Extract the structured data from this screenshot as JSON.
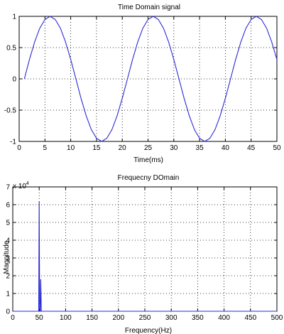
{
  "chart_data": [
    {
      "type": "line",
      "title": "Time Domain signal",
      "xlabel": "Time(ms)",
      "ylabel": "",
      "xlim": [
        0,
        50
      ],
      "ylim": [
        -1,
        1
      ],
      "x_ticks": [
        0,
        5,
        10,
        15,
        20,
        25,
        30,
        35,
        40,
        45,
        50
      ],
      "y_ticks": [
        -1,
        -0.5,
        0,
        0.5,
        1
      ],
      "x_tick_labels": [
        "0",
        "5",
        "10",
        "15",
        "20",
        "25",
        "30",
        "35",
        "40",
        "45",
        "50"
      ],
      "y_tick_labels": [
        "-1",
        "-0.5",
        "0",
        "0.5",
        "1"
      ],
      "grid": true,
      "series": [
        {
          "color": "#2b2bd6",
          "x": [
            1,
            2,
            3,
            4,
            5,
            6,
            7,
            8,
            9,
            10,
            11,
            12,
            13,
            14,
            15,
            16,
            17,
            18,
            19,
            20,
            21,
            22,
            23,
            24,
            25,
            26,
            27,
            28,
            29,
            30,
            31,
            32,
            33,
            34,
            35,
            36,
            37,
            38,
            39,
            40,
            41,
            42,
            43,
            44,
            45,
            46,
            47,
            48,
            49,
            50
          ],
          "y": [
            0,
            0.31,
            0.59,
            0.81,
            0.95,
            1,
            0.95,
            0.81,
            0.59,
            0.31,
            0,
            -0.31,
            -0.59,
            -0.81,
            -0.95,
            -1,
            -0.95,
            -0.81,
            -0.59,
            -0.31,
            0,
            0.31,
            0.59,
            0.81,
            0.95,
            1,
            0.95,
            0.81,
            0.59,
            0.31,
            0,
            -0.31,
            -0.59,
            -0.81,
            -0.95,
            -1,
            -0.95,
            -0.81,
            -0.59,
            -0.31,
            0,
            0.31,
            0.59,
            0.81,
            0.95,
            1,
            0.95,
            0.81,
            0.59,
            0.31
          ]
        }
      ]
    },
    {
      "type": "line",
      "title": "Frequecny DOmain",
      "xlabel": "Frequency(Hz)",
      "ylabel": "Magnitude",
      "y_exponent_label": "x 10",
      "y_exponent": "4",
      "xlim": [
        0,
        500
      ],
      "ylim": [
        0,
        7
      ],
      "x_ticks": [
        0,
        50,
        100,
        150,
        200,
        250,
        300,
        350,
        400,
        450,
        500
      ],
      "y_ticks": [
        0,
        1,
        2,
        3,
        4,
        5,
        6,
        7
      ],
      "x_tick_labels": [
        "0",
        "50",
        "100",
        "150",
        "200",
        "250",
        "300",
        "350",
        "400",
        "450",
        "500"
      ],
      "y_tick_labels": [
        "0",
        "1",
        "2",
        "3",
        "4",
        "5",
        "6",
        "7"
      ],
      "grid": true,
      "series": [
        {
          "color": "#2b2bd6",
          "x": [
            0,
            49,
            50,
            51,
            52,
            53,
            54,
            500
          ],
          "y": [
            0,
            0,
            6.2,
            0,
            0,
            1.8,
            0,
            0
          ]
        }
      ]
    }
  ]
}
